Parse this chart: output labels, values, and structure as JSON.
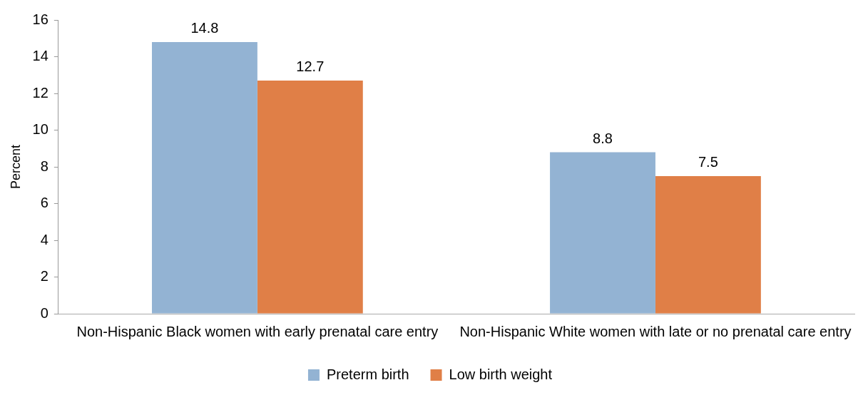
{
  "chart_data": {
    "type": "bar",
    "ylabel": "Percent",
    "categories": [
      "Non-Hispanic Black women with early prenatal care entry",
      "Non-Hispanic White women with late or no prenatal care entry"
    ],
    "series": [
      {
        "name": "Preterm birth",
        "color": "#93b3d3",
        "values": [
          14.8,
          8.8
        ]
      },
      {
        "name": "Low birth weight",
        "color": "#e07f47",
        "values": [
          12.7,
          7.5
        ]
      }
    ],
    "ylim": [
      0,
      16
    ],
    "yticks": [
      0,
      2,
      4,
      6,
      8,
      10,
      12,
      14,
      16
    ],
    "grid": false,
    "legend": "bottom",
    "data_labels": true
  }
}
